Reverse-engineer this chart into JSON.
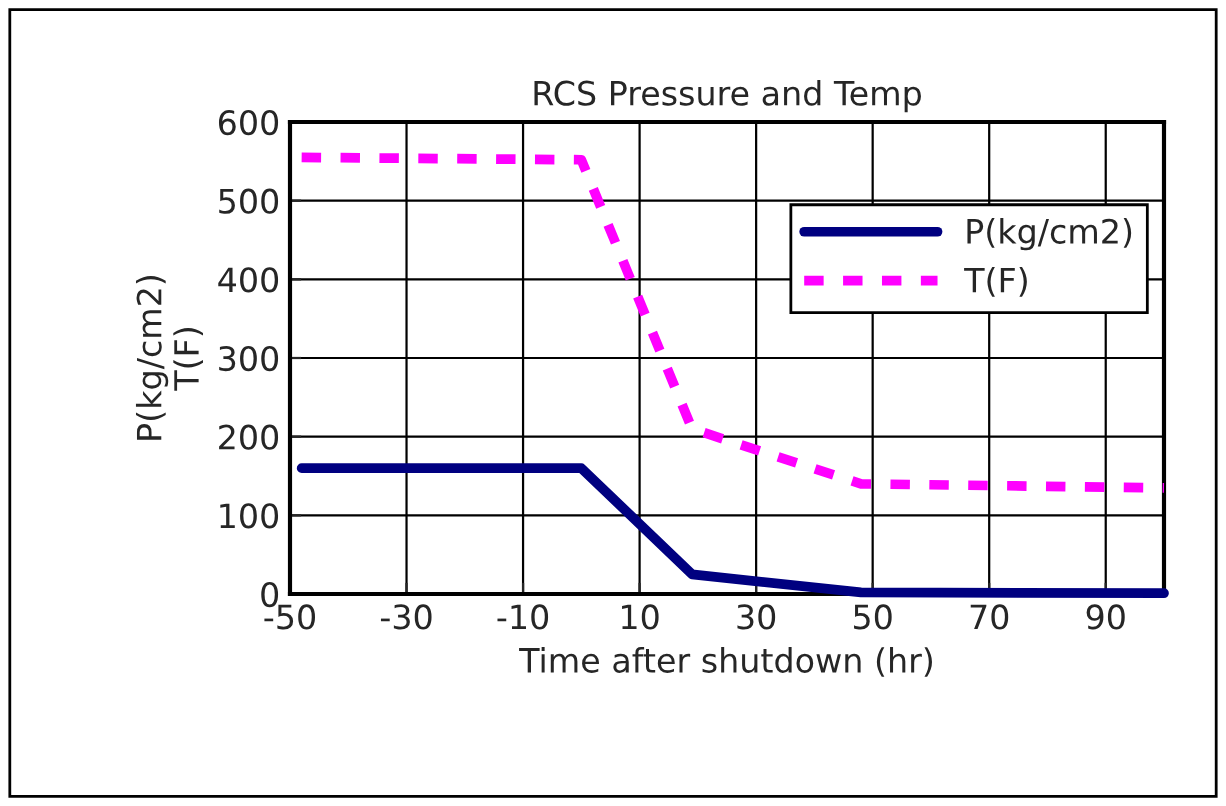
{
  "chart_data": {
    "type": "line",
    "title": "RCS Pressure and Temp",
    "xlabel": "Time after shutdown (hr)",
    "ylabel": "P(kg/cm2)\nT(F)",
    "xlim": [
      -50,
      100
    ],
    "xticks": [
      -50,
      -30,
      -10,
      10,
      30,
      50,
      70,
      90
    ],
    "ylim": [
      0,
      600
    ],
    "yticks": [
      0,
      100,
      200,
      300,
      400,
      500,
      600
    ],
    "grid": true,
    "legend": "top right",
    "series": [
      {
        "name": "P(kg/cm2)",
        "color": "#000080",
        "line_style": "solid",
        "x": [
          -48,
          0,
          19,
          48,
          100
        ],
        "values": [
          160,
          160,
          25,
          2,
          1
        ]
      },
      {
        "name": "T(F)",
        "color": "#ff00ff",
        "line_style": "dashed",
        "x": [
          -48,
          0,
          19,
          48,
          100
        ],
        "values": [
          555,
          552,
          210,
          140,
          135
        ]
      }
    ]
  }
}
